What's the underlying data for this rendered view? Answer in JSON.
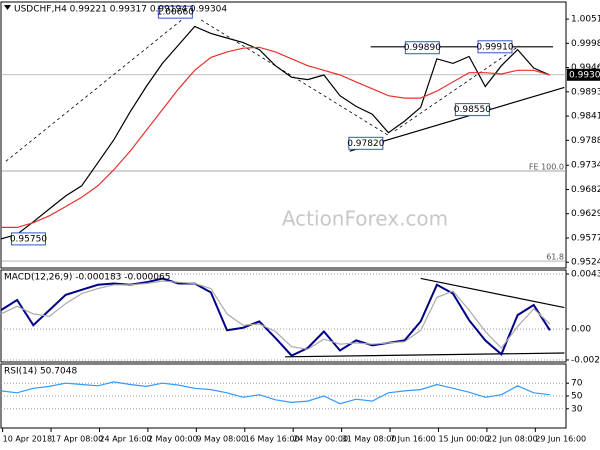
{
  "chart_data": [
    {
      "type": "line",
      "title": "USDCHF,H4 0.99221 0.99317 0.99194 0.99304",
      "watermark": "ActionForex.com",
      "xlim": [
        0,
        350
      ],
      "ylim": [
        0.9512,
        1.0088
      ],
      "yticks": [
        {
          "value": 1.0051,
          "label": "1.00510"
        },
        0.99985,
        {
          "value": 0.9946,
          "label": "0.99460"
        },
        0.98935,
        {
          "value": 0.9841,
          "label": "0.98410"
        },
        0.97885,
        0.97345,
        {
          "value": 0.9682,
          "label": "0.96820"
        },
        0.96295,
        {
          "value": 0.9577,
          "label": "0.95770"
        },
        0.95245
      ],
      "last_price": 0.99304,
      "levels": [
        {
          "label": "FE 100.0",
          "value": 0.9722
        },
        {
          "label": "61.8",
          "value": 0.9527
        }
      ],
      "x": [
        0,
        10,
        20,
        30,
        40,
        50,
        60,
        70,
        80,
        90,
        100,
        110,
        120,
        130,
        140,
        150,
        160,
        170,
        180,
        190,
        200,
        210,
        220,
        230,
        240,
        250,
        260,
        270,
        280,
        290,
        300,
        310,
        320,
        330,
        340
      ],
      "series": [
        {
          "color": "#000000",
          "values": [
            0.9575,
            0.9585,
            0.9612,
            0.964,
            0.9668,
            0.969,
            0.974,
            0.979,
            0.985,
            0.9905,
            0.9955,
            0.9995,
            1.0035,
            1.002,
            1.001,
            1.0,
            0.9985,
            0.995,
            0.9925,
            0.992,
            0.993,
            0.9885,
            0.9862,
            0.9845,
            0.9805,
            0.983,
            0.986,
            0.9965,
            0.9955,
            0.997,
            0.9905,
            0.995,
            0.9985,
            0.9945,
            0.993
          ]
        },
        {
          "color": "#e8312f",
          "values": [
            0.96,
            0.96,
            0.961,
            0.9625,
            0.9645,
            0.9665,
            0.969,
            0.9725,
            0.9765,
            0.981,
            0.9855,
            0.99,
            0.994,
            0.9968,
            0.998,
            0.9988,
            0.999,
            0.998,
            0.9965,
            0.995,
            0.994,
            0.993,
            0.9915,
            0.99,
            0.9885,
            0.988,
            0.988,
            0.9895,
            0.9915,
            0.9935,
            0.9935,
            0.9932,
            0.994,
            0.994,
            0.993
          ]
        }
      ],
      "trendlines": [
        {
          "x": [
            229,
            342
          ],
          "y": [
            0.9991,
            0.9991
          ],
          "dashed": false
        },
        {
          "x": [
            216,
            349
          ],
          "y": [
            0.9765,
            0.9903
          ],
          "dashed": false
        },
        {
          "x": [
            3,
            114
          ],
          "y": [
            0.9743,
            1.0055
          ],
          "dashed": true
        },
        {
          "x": [
            124,
            241
          ],
          "y": [
            1.0049,
            0.9797
          ],
          "dashed": true
        },
        {
          "x": [
            244,
            321
          ],
          "y": [
            0.9809,
            0.9993
          ],
          "dashed": true
        }
      ],
      "annotations": [
        {
          "x": 108,
          "value": 1.0066,
          "label": "1.00660"
        },
        {
          "x": 261,
          "value": 0.9989,
          "label": "0.99890"
        },
        {
          "x": 306,
          "value": 0.9991,
          "label": "0.99910"
        },
        {
          "x": 292,
          "value": 0.9855,
          "label": "0.98550"
        },
        {
          "x": 226,
          "value": 0.9782,
          "label": "0.97820"
        },
        {
          "x": 17,
          "value": 0.9575,
          "label": "0.95750"
        }
      ]
    },
    {
      "type": "line",
      "title": "MACD(12,26,9) -0.000183 -0.000065",
      "xlim": [
        0,
        350
      ],
      "ylim": [
        -0.00261,
        0.00467
      ],
      "yticks": [
        0.004351,
        {
          "value": 0,
          "label": "0.00"
        },
        -0.002448
      ],
      "grid": true,
      "x": [
        0,
        10,
        20,
        30,
        40,
        50,
        60,
        70,
        80,
        90,
        100,
        110,
        120,
        130,
        140,
        150,
        160,
        170,
        180,
        190,
        200,
        210,
        220,
        230,
        240,
        250,
        260,
        270,
        280,
        290,
        300,
        310,
        320,
        330,
        340
      ],
      "series": [
        {
          "color": "#00008b",
          "values": [
            0.0015,
            0.0023,
            0.0003,
            0.0015,
            0.0027,
            0.0031,
            0.0035,
            0.0036,
            0.0035,
            0.0037,
            0.004,
            0.0036,
            0.0036,
            0.0029,
            -0.0001,
            0.0001,
            0.0006,
            -0.0007,
            -0.0021,
            -0.0015,
            -0.0002,
            -0.0017,
            -0.0009,
            -0.0013,
            -0.0011,
            -0.0009,
            0.0006,
            0.0035,
            0.0028,
            0.0007,
            -0.0009,
            -0.002,
            0.0011,
            0.0019,
            -0.0001
          ]
        },
        {
          "color": "#aaaaaa",
          "values": [
            0.0012,
            0.0018,
            0.0012,
            0.001,
            0.002,
            0.0028,
            0.0032,
            0.0035,
            0.0035,
            0.0036,
            0.0038,
            0.0037,
            0.0036,
            0.0032,
            0.0012,
            0.0003,
            0.0004,
            -0.0002,
            -0.0014,
            -0.0016,
            -0.0008,
            -0.0012,
            -0.0011,
            -0.0012,
            -0.0011,
            -0.001,
            -0.0001,
            0.0025,
            0.003,
            0.0015,
            -0.0002,
            -0.0015,
            0.0002,
            0.0016,
            0.0004
          ]
        }
      ],
      "trendlines": [
        {
          "x": [
            260,
            349
          ],
          "y": [
            0.004,
            0.0017
          ],
          "dashed": false
        },
        {
          "x": [
            176,
            349
          ],
          "y": [
            -0.0022,
            -0.0019
          ],
          "dashed": false
        }
      ]
    },
    {
      "type": "line",
      "title": "RSI(14) 50.7048",
      "xlim": [
        0,
        350
      ],
      "ylim": [
        0,
        100
      ],
      "yticks": [
        70,
        50,
        30
      ],
      "grid": true,
      "xticks": [
        {
          "value": 1,
          "label": "10 Apr 2018"
        },
        {
          "value": 31,
          "label": "17 Apr 08:00"
        },
        {
          "value": 61,
          "label": "24 Apr 16:00"
        },
        {
          "value": 91,
          "label": "2 May 00:00"
        },
        {
          "value": 121,
          "label": "9 May 08:00"
        },
        {
          "value": 151,
          "label": "16 May 16:00"
        },
        {
          "value": 181,
          "label": "24 May 00:00"
        },
        {
          "value": 211,
          "label": "31 May 08:00"
        },
        {
          "value": 241,
          "label": "7 Jun 16:00"
        },
        {
          "value": 271,
          "label": "15 Jun 00:00"
        },
        {
          "value": 301,
          "label": "22 Jun 08:00"
        },
        {
          "value": 331,
          "label": "29 Jun 16:00"
        }
      ],
      "x": [
        0,
        10,
        20,
        30,
        40,
        50,
        60,
        70,
        80,
        90,
        100,
        110,
        120,
        130,
        140,
        150,
        160,
        170,
        180,
        190,
        200,
        210,
        220,
        230,
        240,
        250,
        260,
        270,
        280,
        290,
        300,
        310,
        320,
        330,
        340
      ],
      "series": [
        {
          "color": "#3399ff",
          "values": [
            58,
            55,
            62,
            65,
            70,
            68,
            66,
            72,
            68,
            65,
            70,
            67,
            62,
            60,
            55,
            48,
            52,
            44,
            40,
            42,
            50,
            38,
            45,
            42,
            55,
            58,
            60,
            68,
            62,
            56,
            48,
            52,
            66,
            55,
            52
          ]
        }
      ]
    }
  ]
}
